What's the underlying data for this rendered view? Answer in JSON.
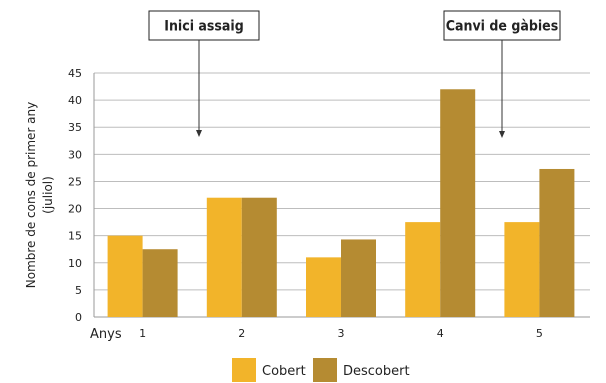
{
  "chart_data": {
    "type": "bar",
    "x_prefix": "Anys",
    "categories": [
      "1",
      "2",
      "3",
      "4",
      "5"
    ],
    "series": [
      {
        "name": "Cobert",
        "color": "#f2b42a",
        "values": [
          15,
          22,
          11,
          17.5,
          17.5
        ]
      },
      {
        "name": "Descobert",
        "color": "#b58b32",
        "values": [
          12.5,
          22,
          14.3,
          42,
          27.3
        ]
      }
    ],
    "ylabel_lines": [
      "Nombre de cons de primer any",
      "(juliol)"
    ],
    "ylim": [
      0,
      45
    ],
    "yticks": [
      0,
      5,
      10,
      15,
      20,
      25,
      30,
      35,
      40,
      45
    ],
    "grid": true,
    "legend_position": "bottom-center",
    "annotations": [
      {
        "text": "Inici assaig"
      },
      {
        "text": "Canvi de gàbies"
      }
    ]
  }
}
